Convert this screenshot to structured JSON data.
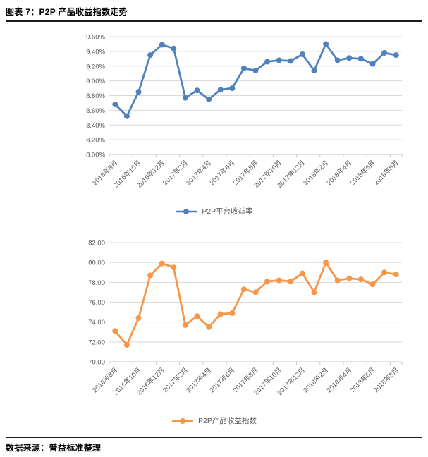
{
  "page": {
    "title": "图表 7：P2P 产品收益指数走势",
    "source_label": "数据来源：普益标准整理"
  },
  "colors": {
    "series1": "#4F81BD",
    "series2": "#F79646",
    "gridline": "#D9D9D9",
    "axis_line": "#C6C6C6",
    "axis_text": "#595959"
  },
  "chart_data": [
    {
      "type": "line",
      "legend": "P2P平台收益率",
      "legend_position": "bottom",
      "color": "#4F81BD",
      "marker": "circle",
      "grid": true,
      "unit": "%",
      "ylim": [
        8.0,
        9.6
      ],
      "y_tick_labels": [
        "9.60%",
        "9.40%",
        "9.20%",
        "9.00%",
        "8.80%",
        "8.60%",
        "8.40%",
        "8.20%",
        "8.00%"
      ],
      "x_tick_labels": [
        "2016年8月",
        "2016年10月",
        "2016年12月",
        "2017年2月",
        "2017年4月",
        "2017年6月",
        "2017年8月",
        "2017年10月",
        "2017年12月",
        "2018年2月",
        "2018年4月",
        "2018年6月",
        "2018年8月"
      ],
      "x_frequency": "monthly, labels every 2 months",
      "n_points": 25,
      "values": [
        8.68,
        8.52,
        8.85,
        9.35,
        9.49,
        9.44,
        8.77,
        8.87,
        8.75,
        8.88,
        8.9,
        9.17,
        9.14,
        9.26,
        9.28,
        9.27,
        9.36,
        9.14,
        9.5,
        9.28,
        9.31,
        9.3,
        9.23,
        9.38,
        9.35
      ]
    },
    {
      "type": "line",
      "legend": "P2P产品收益指数",
      "legend_position": "bottom",
      "color": "#F79646",
      "marker": "circle",
      "grid": true,
      "unit": "index",
      "ylim": [
        70.0,
        82.0
      ],
      "y_tick_labels": [
        "82.00",
        "80.00",
        "78.00",
        "76.00",
        "74.00",
        "72.00",
        "70.00"
      ],
      "x_tick_labels": [
        "2016年8月",
        "2016年10月",
        "2016年12月",
        "2017年2月",
        "2017年4月",
        "2017年6月",
        "2017年8月",
        "2017年10月",
        "2017年12月",
        "2018年2月",
        "2018年4月",
        "2018年6月",
        "2018年8月"
      ],
      "x_frequency": "monthly, labels every 2 months",
      "n_points": 25,
      "values": [
        73.1,
        71.7,
        74.4,
        78.7,
        79.9,
        79.5,
        73.7,
        74.6,
        73.5,
        74.8,
        74.9,
        77.3,
        77.0,
        78.1,
        78.2,
        78.1,
        78.9,
        77.0,
        80.0,
        78.2,
        78.4,
        78.3,
        77.8,
        79.0,
        78.8
      ]
    }
  ]
}
